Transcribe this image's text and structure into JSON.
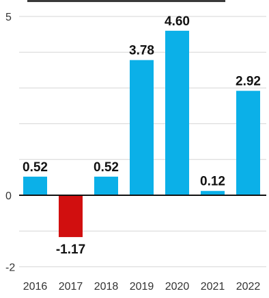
{
  "chart_data": {
    "type": "bar",
    "title": "",
    "xlabel": "",
    "ylabel": "",
    "categories": [
      "2016",
      "2017",
      "2018",
      "2019",
      "2020",
      "2021",
      "2022"
    ],
    "values": [
      0.52,
      -1.17,
      0.52,
      3.78,
      4.6,
      0.12,
      2.92
    ],
    "value_labels": [
      "0.52",
      "-1.17",
      "0.52",
      "3.78",
      "4.60",
      "0.12",
      "2.92"
    ],
    "y_ticks": [
      {
        "value": 5,
        "label": "5"
      },
      {
        "value": 0,
        "label": "0"
      },
      {
        "value": -2,
        "label": "-2"
      }
    ],
    "y_gridlines": [
      5,
      4,
      3,
      2,
      1,
      0,
      -1,
      -2
    ],
    "ylim": [
      -2,
      5
    ],
    "grid": true,
    "legend": "none",
    "colors": {
      "positive": "#0BB0E8",
      "negative": "#D10F0F",
      "zero_line": "#111111",
      "grid": "#d6d6d6"
    }
  }
}
